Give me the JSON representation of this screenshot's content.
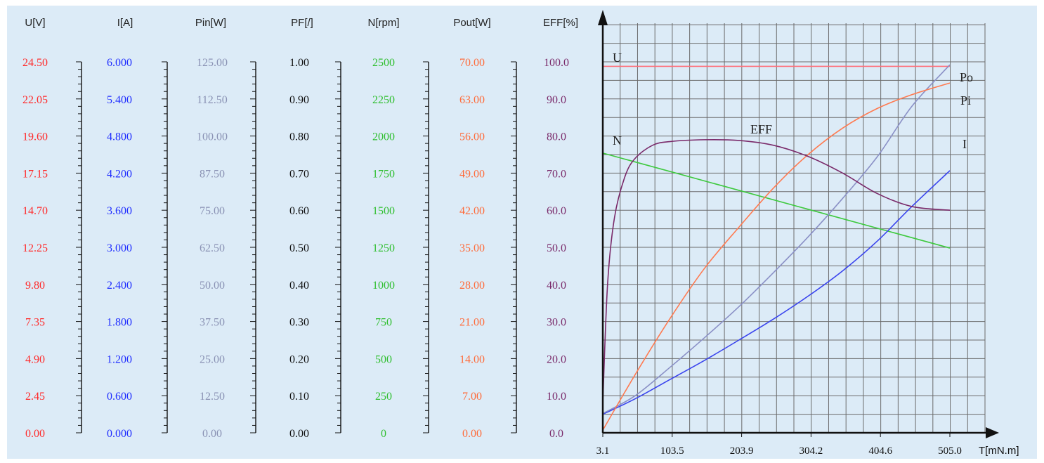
{
  "chart_data": {
    "type": "line",
    "xlabel": "T[mN.m]",
    "x_ticks": [
      "3.1",
      "103.5",
      "203.9",
      "304.2",
      "404.6",
      "505.0"
    ],
    "xlim": [
      3.1,
      505.0
    ],
    "grid": true,
    "axes": [
      {
        "key": "U",
        "header": "U[V]",
        "color": "#ff2a2a",
        "ticks": [
          "0.00",
          "2.45",
          "4.90",
          "7.35",
          "9.80",
          "12.25",
          "14.70",
          "17.15",
          "19.60",
          "22.05",
          "24.50"
        ],
        "range": [
          0,
          24.5
        ]
      },
      {
        "key": "I",
        "header": "I[A]",
        "color": "#1f2dff",
        "ticks": [
          "0.000",
          "0.600",
          "1.200",
          "1.800",
          "2.400",
          "3.000",
          "3.600",
          "4.200",
          "4.800",
          "5.400",
          "6.000"
        ],
        "range": [
          0,
          6.0
        ]
      },
      {
        "key": "Pin",
        "header": "Pin[W]",
        "color": "#8a92b4",
        "ticks": [
          "0.00",
          "12.50",
          "25.00",
          "37.50",
          "50.00",
          "62.50",
          "75.00",
          "87.50",
          "100.00",
          "112.50",
          "125.00"
        ],
        "range": [
          0,
          125
        ]
      },
      {
        "key": "PF",
        "header": "PF[/]",
        "color": "#111111",
        "ticks": [
          "0.00",
          "0.10",
          "0.20",
          "0.30",
          "0.40",
          "0.50",
          "0.60",
          "0.70",
          "0.80",
          "0.90",
          "1.00"
        ],
        "range": [
          0,
          1
        ]
      },
      {
        "key": "N",
        "header": "N[rpm]",
        "color": "#2fbf2f",
        "ticks": [
          "0",
          "250",
          "500",
          "750",
          "1000",
          "1250",
          "1500",
          "1750",
          "2000",
          "2250",
          "2500"
        ],
        "range": [
          0,
          2500
        ]
      },
      {
        "key": "Pout",
        "header": "Pout[W]",
        "color": "#ff6b3a",
        "ticks": [
          "0.00",
          "7.00",
          "14.00",
          "21.00",
          "28.00",
          "35.00",
          "42.00",
          "49.00",
          "56.00",
          "63.00",
          "70.00"
        ],
        "range": [
          0,
          70
        ]
      },
      {
        "key": "EFF",
        "header": "EFF[%]",
        "color": "#7a2a6a",
        "ticks": [
          "0.0",
          "10.0",
          "20.0",
          "30.0",
          "40.0",
          "50.0",
          "60.0",
          "70.0",
          "80.0",
          "90.0",
          "100.0"
        ],
        "range": [
          0,
          100
        ]
      }
    ],
    "series": [
      {
        "name": "U",
        "axis": "U",
        "color": "#ff6f7a",
        "x": [
          3.1,
          505.0
        ],
        "y": [
          24.2,
          24.2
        ]
      },
      {
        "name": "N",
        "axis": "N",
        "color": "#3ec93e",
        "x": [
          3.1,
          505.0
        ],
        "y": [
          1885,
          1245
        ]
      },
      {
        "name": "I",
        "axis": "I",
        "color": "#3a44ee",
        "x": [
          3.1,
          50,
          100,
          150,
          200,
          250,
          300,
          350,
          400,
          450,
          505.0
        ],
        "y": [
          0.3,
          0.55,
          0.86,
          1.17,
          1.5,
          1.84,
          2.21,
          2.62,
          3.1,
          3.66,
          4.24
        ]
      },
      {
        "name": "Pi",
        "axis": "Pin",
        "color": "#8a90c6",
        "x": [
          3.1,
          50,
          100,
          150,
          200,
          250,
          300,
          350,
          400,
          450,
          505.0
        ],
        "y": [
          6.5,
          12.5,
          22.0,
          32.0,
          42.5,
          54.0,
          66.0,
          79.0,
          93.0,
          110.0,
          124.0
        ]
      },
      {
        "name": "Po",
        "axis": "Pout",
        "color": "#ff7a50",
        "x": [
          3.1,
          50,
          100,
          150,
          200,
          250,
          300,
          350,
          400,
          450,
          505.0
        ],
        "y": [
          0.5,
          11.0,
          21.5,
          31.0,
          38.8,
          46.2,
          52.5,
          57.5,
          61.2,
          63.8,
          66.0
        ]
      },
      {
        "name": "EFF",
        "axis": "EFF",
        "color": "#7a2a6a",
        "x": [
          3.1,
          10,
          20,
          35,
          50,
          75,
          100,
          150,
          200,
          250,
          300,
          350,
          400,
          450,
          505.0
        ],
        "y": [
          8,
          40,
          58,
          69,
          74,
          77.5,
          78.5,
          79,
          78.8,
          77.5,
          74.5,
          70,
          64.5,
          61,
          60
        ]
      }
    ],
    "curve_labels": [
      "U",
      "N",
      "EFF",
      "Po",
      "Pi",
      "I"
    ]
  }
}
